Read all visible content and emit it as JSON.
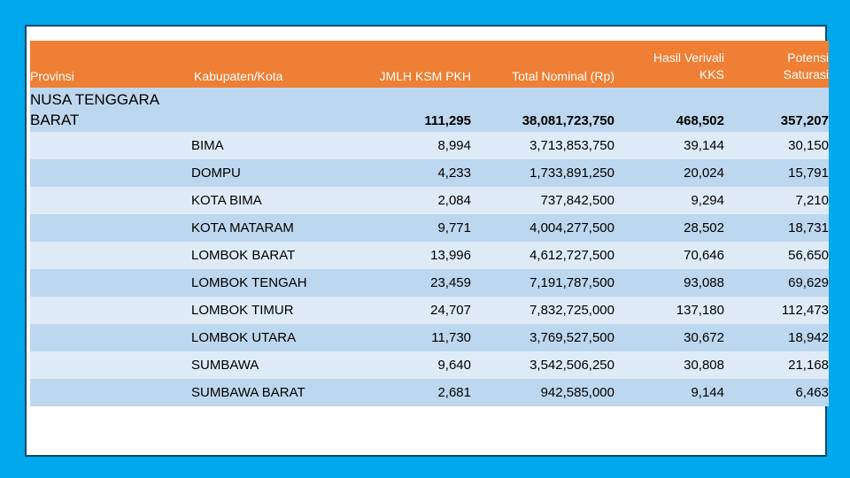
{
  "colors": {
    "background": "#00a8ec",
    "header": "#ee7f34",
    "row_dark": "#bdd7ee",
    "row_light": "#deebf7"
  },
  "table": {
    "headers": {
      "provinsi": "Provinsi",
      "kabupaten": "Kabupaten/Kota",
      "jmlh_ksm": "JMLH KSM PKH",
      "total_nominal": "Total Nominal (Rp)",
      "hasil_verivali": "Hasil Verivali KKS",
      "potensi_saturasi": "Potensi Saturasi"
    },
    "province": {
      "name": "NUSA TENGGARA BARAT",
      "jmlh_ksm": "111,295",
      "total_nominal": "38,081,723,750",
      "hasil_verivali": "468,502",
      "potensi_saturasi": "357,207"
    },
    "rows": [
      {
        "kabupaten": "BIMA",
        "jmlh_ksm": "8,994",
        "total_nominal": "3,713,853,750",
        "hasil_verivali": "39,144",
        "potensi_saturasi": "30,150"
      },
      {
        "kabupaten": "DOMPU",
        "jmlh_ksm": "4,233",
        "total_nominal": "1,733,891,250",
        "hasil_verivali": "20,024",
        "potensi_saturasi": "15,791"
      },
      {
        "kabupaten": "KOTA BIMA",
        "jmlh_ksm": "2,084",
        "total_nominal": "737,842,500",
        "hasil_verivali": "9,294",
        "potensi_saturasi": "7,210"
      },
      {
        "kabupaten": "KOTA MATARAM",
        "jmlh_ksm": "9,771",
        "total_nominal": "4,004,277,500",
        "hasil_verivali": "28,502",
        "potensi_saturasi": "18,731"
      },
      {
        "kabupaten": "LOMBOK BARAT",
        "jmlh_ksm": "13,996",
        "total_nominal": "4,612,727,500",
        "hasil_verivali": "70,646",
        "potensi_saturasi": "56,650"
      },
      {
        "kabupaten": "LOMBOK TENGAH",
        "jmlh_ksm": "23,459",
        "total_nominal": "7,191,787,500",
        "hasil_verivali": "93,088",
        "potensi_saturasi": "69,629"
      },
      {
        "kabupaten": "LOMBOK TIMUR",
        "jmlh_ksm": "24,707",
        "total_nominal": "7,832,725,000",
        "hasil_verivali": "137,180",
        "potensi_saturasi": "112,473"
      },
      {
        "kabupaten": "LOMBOK UTARA",
        "jmlh_ksm": "11,730",
        "total_nominal": "3,769,527,500",
        "hasil_verivali": "30,672",
        "potensi_saturasi": "18,942"
      },
      {
        "kabupaten": "SUMBAWA",
        "jmlh_ksm": "9,640",
        "total_nominal": "3,542,506,250",
        "hasil_verivali": "30,808",
        "potensi_saturasi": "21,168"
      },
      {
        "kabupaten": "SUMBAWA BARAT",
        "jmlh_ksm": "2,681",
        "total_nominal": "942,585,000",
        "hasil_verivali": "9,144",
        "potensi_saturasi": "6,463"
      }
    ]
  }
}
